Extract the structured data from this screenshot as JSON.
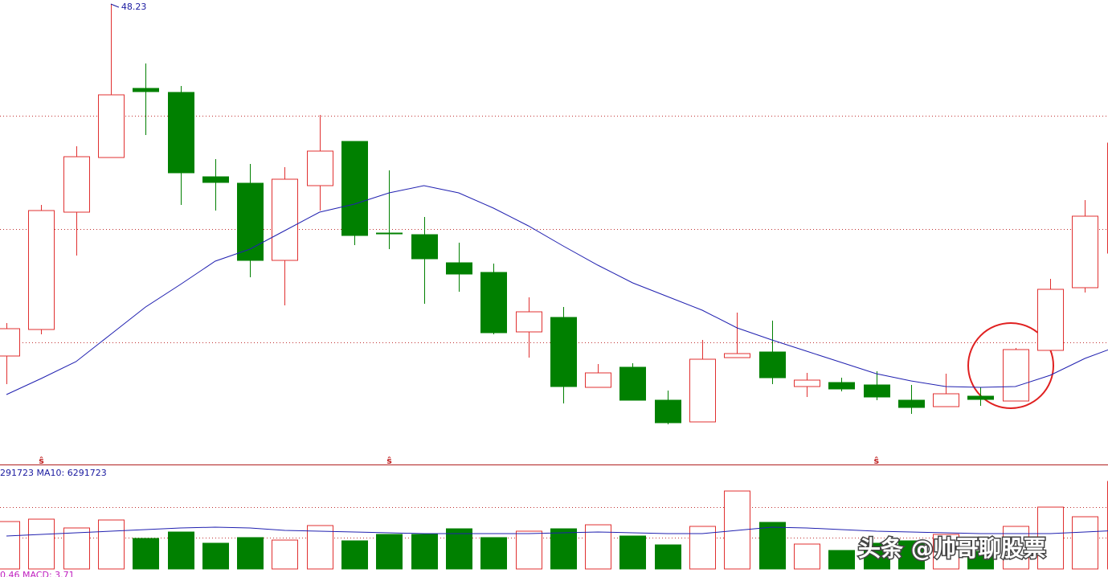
{
  "chart_data": {
    "type": "candlestick",
    "opens": [
      26.33,
      27.98,
      35.28,
      38.68,
      42.98,
      42.73,
      37.48,
      37.08,
      32.28,
      36.93,
      39.68,
      33.98,
      33.88,
      32.13,
      31.53,
      27.83,
      28.73,
      24.38,
      25.63,
      23.58,
      22.23,
      26.23,
      26.58,
      24.43,
      24.68,
      24.53,
      23.58,
      23.18,
      23.83,
      23.53,
      26.68,
      30.58,
      32.73
    ],
    "highs": [
      28.38,
      35.73,
      39.38,
      48.23,
      44.53,
      43.13,
      38.58,
      38.28,
      38.08,
      41.33,
      39.68,
      37.88,
      34.98,
      33.38,
      32.08,
      29.98,
      29.38,
      25.83,
      25.88,
      24.18,
      27.33,
      29.03,
      28.53,
      25.28,
      24.98,
      25.38,
      24.53,
      25.23,
      24.38,
      26.83,
      31.13,
      36.03,
      39.58
    ],
    "lows": [
      24.58,
      27.68,
      32.58,
      38.68,
      40.08,
      35.73,
      35.38,
      31.23,
      29.48,
      35.38,
      33.23,
      32.98,
      29.58,
      30.33,
      27.68,
      26.23,
      23.38,
      24.38,
      23.58,
      22.08,
      22.23,
      26.23,
      24.58,
      23.78,
      24.13,
      23.58,
      22.73,
      23.18,
      23.23,
      23.53,
      26.68,
      30.28,
      32.73
    ],
    "closes": [
      28.03,
      35.38,
      38.73,
      42.58,
      42.78,
      37.73,
      37.13,
      32.28,
      37.33,
      39.08,
      33.83,
      33.98,
      32.38,
      31.43,
      27.78,
      29.08,
      24.43,
      25.28,
      23.58,
      22.18,
      26.13,
      26.48,
      24.98,
      24.83,
      24.28,
      23.78,
      23.13,
      23.98,
      23.63,
      26.73,
      30.48,
      35.03,
      39.58
    ],
    "ma": [
      23.93,
      24.93,
      25.98,
      27.68,
      29.38,
      30.78,
      32.23,
      32.98,
      34.13,
      35.28,
      35.78,
      36.48,
      36.93,
      36.48,
      35.53,
      34.43,
      33.18,
      31.98,
      30.88,
      30.03,
      29.18,
      28.08,
      27.33,
      26.63,
      25.93,
      25.23,
      24.78,
      24.43,
      24.38,
      24.43,
      25.13,
      26.18,
      26.98
    ],
    "ma_color": "#2020b0",
    "up_color": "#e03030",
    "down_color": "#008000",
    "ylim": [
      19.58,
      48.48
    ],
    "grid_levels": [
      41.28,
      34.23,
      27.18
    ],
    "markers": [
      "ŝ",
      "ŝ",
      "ŝ"
    ],
    "volume": {
      "legend": "291723 MA10: 6291723",
      "values": [
        8070000,
        8480000,
        6980000,
        8340000,
        5200000,
        6290000,
        4380000,
        5340000,
        4920000,
        7390000,
        4790000,
        5880000,
        5880000,
        6840000,
        5340000,
        6430000,
        6840000,
        7520000,
        5610000,
        4100000,
        7250000,
        13270000,
        7930000,
        4240000,
        3150000,
        4380000,
        4790000,
        5880000,
        3010000,
        7250000,
        10530000,
        8890000,
        14910000
      ],
      "ma": [
        5608800,
        5882400,
        6156000,
        6429600,
        6703200,
        6976800,
        7113600,
        6976800,
        6566400,
        6429600,
        6292800,
        6156000,
        6019200,
        6019200,
        6019200,
        6019200,
        6156000,
        6292800,
        6156000,
        6019200,
        6019200,
        6566400,
        7113600,
        6976800,
        6703200,
        6429600,
        6292800,
        6156000,
        6019200,
        6019200,
        6019200,
        6292800,
        6566400
      ],
      "ylim": [
        0,
        17510400
      ],
      "grid_levels": [
        10533600,
        5335200
      ]
    },
    "macd_legend": "0.46 MACD: 3.71",
    "watermark": "头条 @帅哥聊股票"
  }
}
